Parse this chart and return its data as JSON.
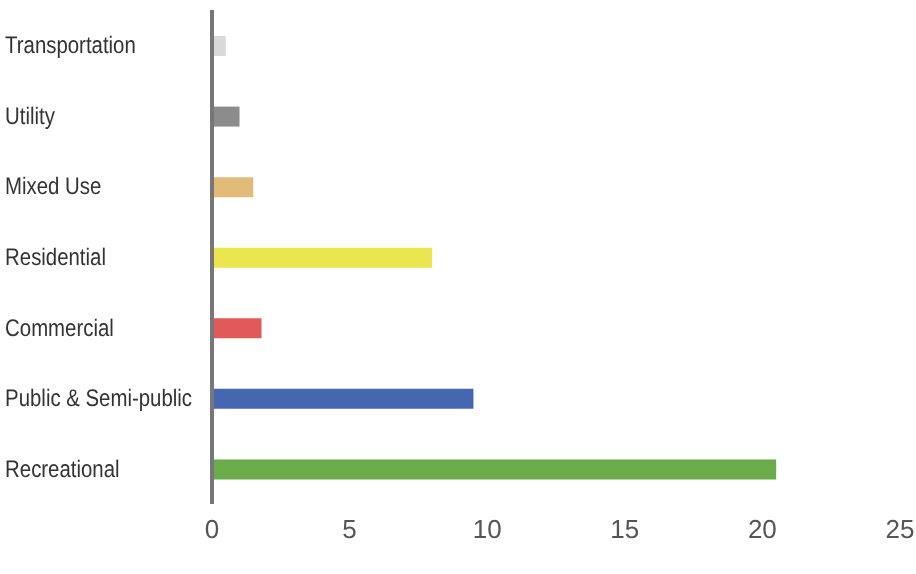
{
  "chart_data": {
    "type": "bar",
    "orientation": "horizontal",
    "categories": [
      "Transportation",
      "Utility",
      "Mixed Use",
      "Residential",
      "Commercial",
      "Public & Semi-public",
      "Recreational"
    ],
    "values": [
      0.5,
      1.0,
      1.5,
      8,
      1.8,
      9.5,
      20.5
    ],
    "colors": [
      "#d9d9d9",
      "#8c8c8c",
      "#e3bb79",
      "#ebe64f",
      "#e05a5a",
      "#4566b0",
      "#6aac4b"
    ],
    "xlim": [
      0,
      25
    ],
    "xticks": [
      0,
      5,
      10,
      15,
      20,
      25
    ],
    "grid": false
  }
}
